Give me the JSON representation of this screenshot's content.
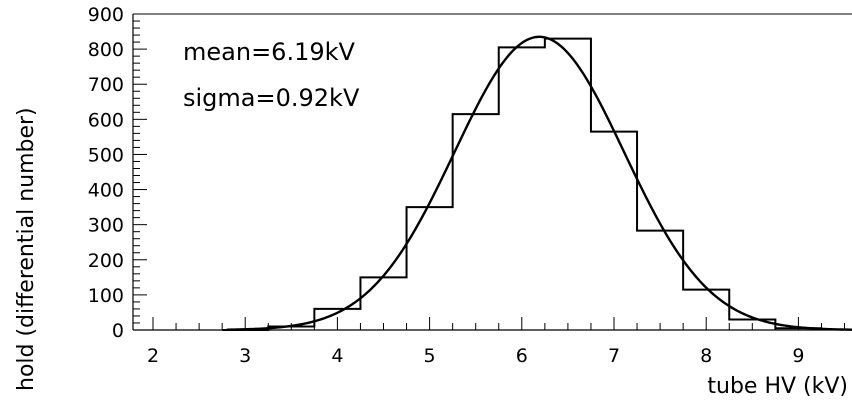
{
  "chart_data": {
    "type": "histogram",
    "title": "",
    "xlabel": "tube HV (kV)",
    "ylabel": "hold (differential number)",
    "xlim": [
      1.5,
      9.7
    ],
    "ylim": [
      0,
      900
    ],
    "x_ticks": [
      2,
      3,
      4,
      5,
      6,
      7,
      8,
      9
    ],
    "y_ticks": [
      0,
      100,
      200,
      300,
      400,
      500,
      600,
      700,
      800,
      900
    ],
    "annotations": [
      "mean=6.19kV",
      "sigma=0.92kV"
    ],
    "fit": {
      "type": "gaussian",
      "mean": 6.19,
      "sigma": 0.92,
      "amplitude": 835
    },
    "bins": [
      {
        "x0": 2.75,
        "x1": 3.25,
        "value": 0
      },
      {
        "x0": 3.25,
        "x1": 3.75,
        "value": 10
      },
      {
        "x0": 3.75,
        "x1": 4.25,
        "value": 60
      },
      {
        "x0": 4.25,
        "x1": 4.75,
        "value": 150
      },
      {
        "x0": 4.75,
        "x1": 5.25,
        "value": 350
      },
      {
        "x0": 5.25,
        "x1": 5.75,
        "value": 615
      },
      {
        "x0": 5.75,
        "x1": 6.25,
        "value": 805
      },
      {
        "x0": 6.25,
        "x1": 6.75,
        "value": 830
      },
      {
        "x0": 6.75,
        "x1": 7.25,
        "value": 565
      },
      {
        "x0": 7.25,
        "x1": 7.75,
        "value": 283
      },
      {
        "x0": 7.75,
        "x1": 8.25,
        "value": 115
      },
      {
        "x0": 8.25,
        "x1": 8.75,
        "value": 30
      },
      {
        "x0": 8.75,
        "x1": 9.25,
        "value": 5
      }
    ]
  }
}
